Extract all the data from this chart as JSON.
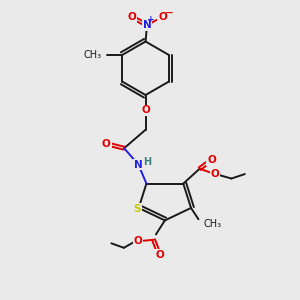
{
  "background_color": "#eaeaea",
  "bond_color": "#1a1a1a",
  "atom_colors": {
    "O": "#e00000",
    "N": "#2020e0",
    "S": "#c8c800",
    "H": "#408080",
    "C": "#1a1a1a"
  },
  "figsize": [
    3.0,
    3.0
  ],
  "dpi": 100,
  "lw": 1.4,
  "fs": 7.5
}
